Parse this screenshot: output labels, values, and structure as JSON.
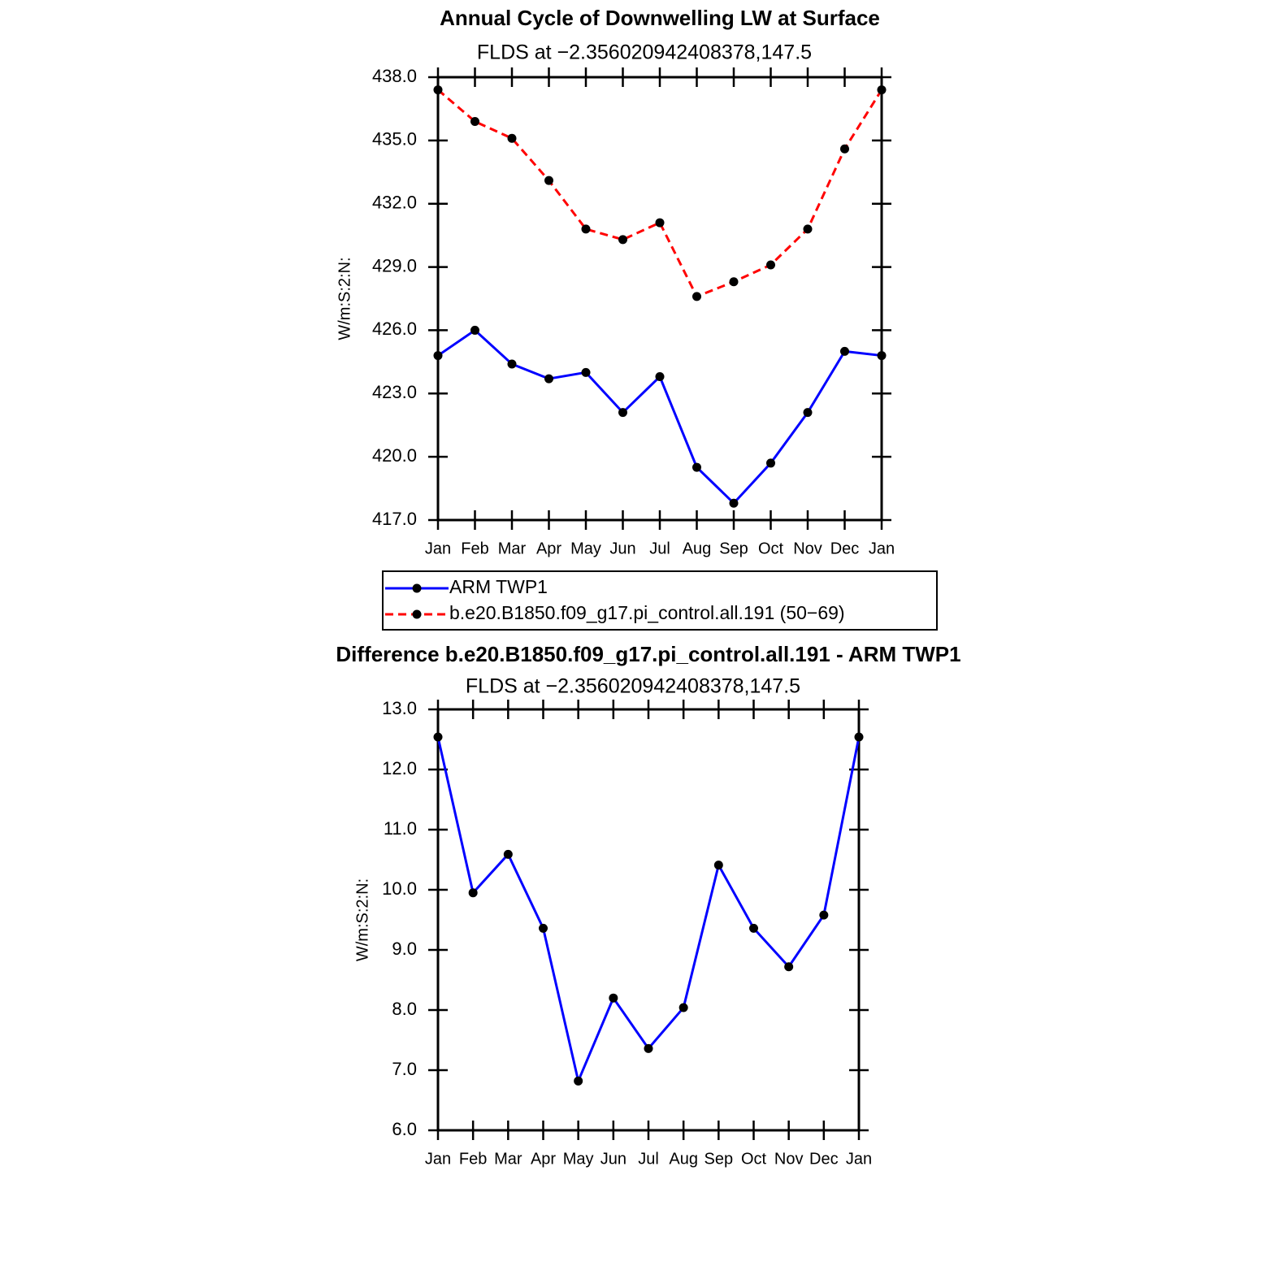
{
  "chart_data": [
    {
      "type": "line",
      "title": "Annual Cycle of Downwelling LW at Surface",
      "subtitle": "FLDS at −2.356020942408378,147.5",
      "ylabel": "W/m:S:2:N:",
      "categories": [
        "Jan",
        "Feb",
        "Mar",
        "Apr",
        "May",
        "Jun",
        "Jul",
        "Aug",
        "Sep",
        "Oct",
        "Nov",
        "Dec",
        "Jan"
      ],
      "series": [
        {
          "name": "ARM TWP1",
          "color": "#0000ff",
          "dash": "solid",
          "values": [
            424.8,
            426.0,
            424.4,
            423.7,
            424.0,
            422.1,
            423.8,
            419.5,
            417.8,
            419.7,
            422.1,
            425.0,
            424.8
          ]
        },
        {
          "name": "b.e20.B1850.f09_g17.pi_control.all.191 (50−69)",
          "color": "#ff0000",
          "dash": "dashed",
          "values": [
            437.4,
            435.9,
            435.1,
            433.1,
            430.8,
            430.3,
            431.1,
            427.6,
            428.3,
            429.1,
            430.8,
            434.6,
            437.4
          ]
        }
      ],
      "ylim": [
        417,
        438
      ],
      "yticks": [
        {
          "value": 417,
          "label": "417.0"
        },
        {
          "value": 420,
          "label": "420.0"
        },
        {
          "value": 423,
          "label": "423.0"
        },
        {
          "value": 426,
          "label": "426.0"
        },
        {
          "value": 429,
          "label": "429.0"
        },
        {
          "value": 432,
          "label": "432.0"
        },
        {
          "value": 435,
          "label": "435.0"
        },
        {
          "value": 438,
          "label": "438.0"
        }
      ],
      "legend": "bottom"
    },
    {
      "type": "line",
      "title": "Difference b.e20.B1850.f09_g17.pi_control.all.191 - ARM TWP1",
      "subtitle": "FLDS at −2.356020942408378,147.5",
      "ylabel": "W/m:S:2:N:",
      "categories": [
        "Jan",
        "Feb",
        "Mar",
        "Apr",
        "May",
        "Jun",
        "Jul",
        "Aug",
        "Sep",
        "Oct",
        "Nov",
        "Dec",
        "Jan"
      ],
      "values": [
        12.54,
        9.95,
        10.59,
        9.36,
        6.82,
        8.2,
        7.36,
        8.04,
        10.41,
        9.36,
        8.72,
        9.58,
        12.54
      ],
      "color": "#0000ff",
      "ylim": [
        6,
        13
      ],
      "yticks": [
        {
          "value": 6,
          "label": "6.0"
        },
        {
          "value": 7,
          "label": "7.0"
        },
        {
          "value": 8,
          "label": "8.0"
        },
        {
          "value": 9,
          "label": "9.0"
        },
        {
          "value": 10,
          "label": "10.0"
        },
        {
          "value": 11,
          "label": "11.0"
        },
        {
          "value": 12,
          "label": "12.0"
        },
        {
          "value": 13,
          "label": "13.0"
        }
      ]
    }
  ]
}
